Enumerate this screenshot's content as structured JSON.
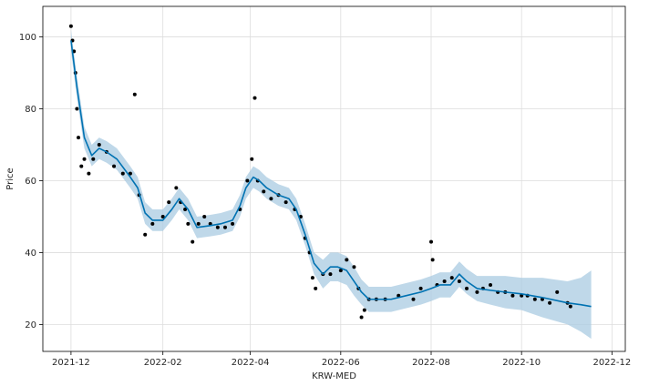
{
  "chart_data": {
    "type": "scatter",
    "title": "",
    "xlabel": "KRW-MED",
    "ylabel": "Price",
    "grid": true,
    "legend": "none",
    "xlim": [
      "2021-11-12",
      "2022-12-10"
    ],
    "ylim": [
      12.5,
      108.5
    ],
    "x_ticks": [
      "2021-12",
      "2022-02",
      "2022-04",
      "2022-06",
      "2022-08",
      "2022-10",
      "2022-12"
    ],
    "y_ticks": [
      20,
      40,
      60,
      80,
      100
    ],
    "colors": {
      "observed": "#000000",
      "forecast_line": "#0072B2",
      "uncertainty_band": "#aacbe2",
      "grid": "#dddddd",
      "axes": "#000000"
    },
    "series": [
      {
        "name": "",
        "kind": "observed_points",
        "x": [
          "2021-12-01",
          "2021-12-02",
          "2021-12-03",
          "2021-12-04",
          "2021-12-05",
          "2021-12-06",
          "2021-12-08",
          "2021-12-10",
          "2021-12-13",
          "2021-12-16",
          "2021-12-20",
          "2021-12-25",
          "2021-12-30",
          "2022-01-05",
          "2022-01-10",
          "2022-01-13",
          "2022-01-16",
          "2022-01-20",
          "2022-01-25",
          "2022-02-01",
          "2022-02-05",
          "2022-02-10",
          "2022-02-13",
          "2022-02-16",
          "2022-02-18",
          "2022-02-21",
          "2022-02-25",
          "2022-03-01",
          "2022-03-05",
          "2022-03-10",
          "2022-03-15",
          "2022-03-20",
          "2022-03-25",
          "2022-03-30",
          "2022-04-02",
          "2022-04-04",
          "2022-04-06",
          "2022-04-10",
          "2022-04-15",
          "2022-04-20",
          "2022-04-25",
          "2022-05-01",
          "2022-05-05",
          "2022-05-08",
          "2022-05-11",
          "2022-05-13",
          "2022-05-15",
          "2022-05-20",
          "2022-05-25",
          "2022-06-01",
          "2022-06-05",
          "2022-06-10",
          "2022-06-13",
          "2022-06-15",
          "2022-06-17",
          "2022-06-20",
          "2022-06-25",
          "2022-07-01",
          "2022-07-10",
          "2022-07-20",
          "2022-07-25",
          "2022-08-01",
          "2022-08-02",
          "2022-08-05",
          "2022-08-10",
          "2022-08-15",
          "2022-08-20",
          "2022-08-25",
          "2022-09-01",
          "2022-09-05",
          "2022-09-10",
          "2022-09-15",
          "2022-09-20",
          "2022-09-25",
          "2022-10-01",
          "2022-10-05",
          "2022-10-10",
          "2022-10-15",
          "2022-10-20",
          "2022-10-25",
          "2022-11-01",
          "2022-11-03"
        ],
        "y": [
          103,
          99,
          96,
          90,
          80,
          72,
          64,
          66,
          62,
          66,
          70,
          68,
          64,
          62,
          62,
          84,
          56,
          45,
          48,
          50,
          54,
          58,
          54,
          52,
          48,
          43,
          48,
          50,
          48,
          47,
          47,
          48,
          52,
          60,
          66,
          83,
          60,
          57,
          55,
          56,
          54,
          52,
          50,
          44,
          40,
          33,
          30,
          34,
          34,
          35,
          38,
          36,
          30,
          22,
          24,
          27,
          27,
          27,
          28,
          27,
          30,
          43,
          38,
          31,
          32,
          33,
          32,
          30,
          29,
          30,
          31,
          29,
          29,
          28,
          28,
          28,
          27,
          27,
          26,
          29,
          26,
          25
        ]
      },
      {
        "name": "",
        "kind": "forecast_line",
        "x": [
          "2021-12-01",
          "2021-12-05",
          "2021-12-10",
          "2021-12-15",
          "2021-12-20",
          "2021-12-25",
          "2022-01-01",
          "2022-01-10",
          "2022-01-15",
          "2022-01-20",
          "2022-01-25",
          "2022-02-01",
          "2022-02-07",
          "2022-02-12",
          "2022-02-18",
          "2022-02-24",
          "2022-03-05",
          "2022-03-12",
          "2022-03-20",
          "2022-03-25",
          "2022-03-29",
          "2022-04-03",
          "2022-04-07",
          "2022-04-12",
          "2022-04-20",
          "2022-04-27",
          "2022-05-02",
          "2022-05-08",
          "2022-05-14",
          "2022-05-20",
          "2022-05-25",
          "2022-05-30",
          "2022-06-05",
          "2022-06-10",
          "2022-06-15",
          "2022-06-20",
          "2022-06-25",
          "2022-07-05",
          "2022-07-15",
          "2022-07-25",
          "2022-08-01",
          "2022-08-07",
          "2022-08-14",
          "2022-08-20",
          "2022-08-25",
          "2022-09-01",
          "2022-09-10",
          "2022-09-20",
          "2022-10-01",
          "2022-10-15",
          "2022-11-01",
          "2022-11-10",
          "2022-11-17"
        ],
        "y": [
          99,
          86,
          72,
          67,
          69,
          68,
          66,
          61,
          58,
          51,
          49,
          49,
          52,
          55,
          52,
          47,
          47.5,
          48,
          49,
          53,
          58,
          61,
          60,
          58,
          56,
          55,
          52,
          45,
          37,
          34,
          36,
          36,
          35,
          32,
          29,
          27,
          27,
          27,
          28,
          29,
          30,
          31,
          31,
          34,
          32,
          30,
          29.5,
          29,
          28.5,
          27.5,
          26,
          25.5,
          25
        ]
      },
      {
        "name": "",
        "kind": "uncertainty_band",
        "x": [
          "2021-12-01",
          "2021-12-05",
          "2021-12-10",
          "2021-12-15",
          "2021-12-20",
          "2021-12-25",
          "2022-01-01",
          "2022-01-10",
          "2022-01-15",
          "2022-01-20",
          "2022-01-25",
          "2022-02-01",
          "2022-02-07",
          "2022-02-12",
          "2022-02-18",
          "2022-02-24",
          "2022-03-05",
          "2022-03-12",
          "2022-03-20",
          "2022-03-25",
          "2022-03-29",
          "2022-04-03",
          "2022-04-07",
          "2022-04-12",
          "2022-04-20",
          "2022-04-27",
          "2022-05-02",
          "2022-05-08",
          "2022-05-14",
          "2022-05-20",
          "2022-05-25",
          "2022-05-30",
          "2022-06-05",
          "2022-06-10",
          "2022-06-15",
          "2022-06-20",
          "2022-06-25",
          "2022-07-05",
          "2022-07-15",
          "2022-07-25",
          "2022-08-01",
          "2022-08-07",
          "2022-08-14",
          "2022-08-20",
          "2022-08-25",
          "2022-09-01",
          "2022-09-10",
          "2022-09-20",
          "2022-10-01",
          "2022-10-15",
          "2022-11-01",
          "2022-11-10",
          "2022-11-17"
        ],
        "upper": [
          102,
          89,
          75,
          70,
          72,
          71,
          69,
          64,
          61,
          54,
          52,
          52,
          55,
          58,
          55,
          50,
          50.5,
          51,
          52,
          56,
          61,
          64,
          63,
          61,
          59,
          58,
          55,
          48,
          40,
          38,
          40,
          40,
          39,
          36,
          32.5,
          30.5,
          30.5,
          30.5,
          31.5,
          32.5,
          33.5,
          34.5,
          34.5,
          37.5,
          35.5,
          33.5,
          33.5,
          33.5,
          33,
          33,
          32,
          33,
          35
        ],
        "lower": [
          96,
          83,
          69,
          64,
          66,
          65,
          63,
          58,
          55,
          48,
          46,
          46,
          49,
          52,
          49,
          44,
          44.5,
          45,
          46,
          50,
          55,
          58,
          57,
          55,
          53,
          52,
          49,
          42,
          34,
          30,
          32,
          32,
          31,
          28,
          25.5,
          23.5,
          23.5,
          23.5,
          24.5,
          25.5,
          26.5,
          27.5,
          27.5,
          30.5,
          28.5,
          26.5,
          25.5,
          24.5,
          24,
          22,
          20,
          18,
          16
        ]
      }
    ]
  }
}
